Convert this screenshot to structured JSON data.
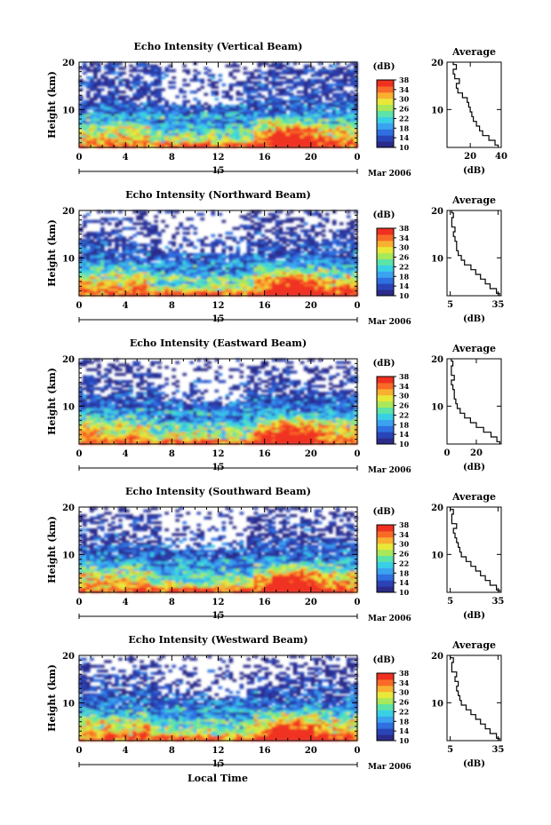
{
  "figure": {
    "xlabel_bottom": "Local Time",
    "date_label": "Mar 2006",
    "date_tick": "15",
    "colorbar_unit": "(dB)",
    "colorbar_ticks": [
      "10",
      "14",
      "18",
      "22",
      "26",
      "30",
      "34",
      "38"
    ],
    "colormap": [
      "#2b2c8a",
      "#2a44b8",
      "#2f6fe0",
      "#3aa3f0",
      "#39d0e6",
      "#5be3a8",
      "#a8e85a",
      "#e8e83a",
      "#f8b030",
      "#f86a28",
      "#f03020"
    ],
    "background_color": "#ffffff",
    "profile_title": "Average",
    "profile_xlabel": "(dB)"
  },
  "chart_data": [
    {
      "type": "heatmap",
      "title": "Echo Intensity (Vertical Beam)",
      "ylabel": "Height (km)",
      "xlabel": "",
      "x_ticks": [
        "0",
        "4",
        "8",
        "12",
        "16",
        "20",
        "0"
      ],
      "y_ticks": [
        "10",
        "20"
      ],
      "xlim": [
        0,
        24
      ],
      "ylim": [
        2,
        20
      ],
      "colorbar_range": [
        10,
        38
      ],
      "profile": {
        "title": "Average",
        "xlabel": "(dB)",
        "x_ticks": [
          "20",
          "40"
        ],
        "x_tick_values": [
          20,
          40
        ],
        "xlim": [
          5,
          40
        ],
        "y_ticks": [
          "10",
          "20"
        ],
        "ylim": [
          2,
          20
        ],
        "points": [
          [
            38,
            2
          ],
          [
            36,
            3
          ],
          [
            32,
            4
          ],
          [
            28,
            5
          ],
          [
            26,
            6
          ],
          [
            24,
            7
          ],
          [
            22,
            8
          ],
          [
            21,
            9
          ],
          [
            20,
            10
          ],
          [
            19,
            11
          ],
          [
            18,
            12
          ],
          [
            15,
            13
          ],
          [
            12,
            14
          ],
          [
            11,
            15
          ],
          [
            13,
            16
          ],
          [
            10,
            17
          ],
          [
            9,
            18
          ],
          [
            11,
            19
          ],
          [
            9,
            20
          ]
        ]
      }
    },
    {
      "type": "heatmap",
      "title": "Echo Intensity (Northward Beam)",
      "ylabel": "Height (km)",
      "xlabel": "",
      "x_ticks": [
        "0",
        "4",
        "8",
        "12",
        "16",
        "20",
        "0"
      ],
      "y_ticks": [
        "10",
        "20"
      ],
      "xlim": [
        0,
        24
      ],
      "ylim": [
        2,
        20
      ],
      "colorbar_range": [
        10,
        38
      ],
      "profile": {
        "title": "Average",
        "xlabel": "(dB)",
        "x_ticks": [
          "5",
          "35"
        ],
        "x_tick_values": [
          5,
          35
        ],
        "xlim": [
          3,
          37
        ],
        "y_ticks": [
          "10",
          "20"
        ],
        "ylim": [
          2,
          20
        ],
        "points": [
          [
            36,
            2
          ],
          [
            34,
            3
          ],
          [
            30,
            4
          ],
          [
            27,
            5
          ],
          [
            24,
            6
          ],
          [
            21,
            7
          ],
          [
            18,
            8
          ],
          [
            14,
            9
          ],
          [
            12,
            10
          ],
          [
            10,
            11
          ],
          [
            9,
            12
          ],
          [
            9,
            13
          ],
          [
            8,
            14
          ],
          [
            7,
            15
          ],
          [
            8,
            16
          ],
          [
            6,
            17
          ],
          [
            6,
            18
          ],
          [
            7,
            19
          ],
          [
            6,
            20
          ]
        ]
      }
    },
    {
      "type": "heatmap",
      "title": "Echo Intensity (Eastward Beam)",
      "ylabel": "Height (km)",
      "xlabel": "",
      "x_ticks": [
        "0",
        "4",
        "8",
        "12",
        "16",
        "20",
        "0"
      ],
      "y_ticks": [
        "10",
        "20"
      ],
      "xlim": [
        0,
        24
      ],
      "ylim": [
        2,
        20
      ],
      "colorbar_range": [
        10,
        38
      ],
      "profile": {
        "title": "Average",
        "xlabel": "(dB)",
        "x_ticks": [
          "0",
          "20"
        ],
        "x_tick_values": [
          0,
          20
        ],
        "xlim": [
          0,
          37
        ],
        "y_ticks": [
          "10",
          "20"
        ],
        "ylim": [
          2,
          20
        ],
        "points": [
          [
            36,
            2
          ],
          [
            34,
            3
          ],
          [
            30,
            4
          ],
          [
            25,
            5
          ],
          [
            20,
            6
          ],
          [
            16,
            7
          ],
          [
            12,
            8
          ],
          [
            9,
            9
          ],
          [
            7,
            10
          ],
          [
            6,
            11
          ],
          [
            5,
            12
          ],
          [
            5,
            13
          ],
          [
            4,
            14
          ],
          [
            3,
            15
          ],
          [
            5,
            16
          ],
          [
            3,
            17
          ],
          [
            3,
            18
          ],
          [
            4,
            19
          ],
          [
            3,
            20
          ]
        ]
      }
    },
    {
      "type": "heatmap",
      "title": "Echo Intensity (Southward Beam)",
      "ylabel": "Height (km)",
      "xlabel": "",
      "x_ticks": [
        "0",
        "4",
        "8",
        "12",
        "16",
        "20",
        "0"
      ],
      "y_ticks": [
        "10",
        "20"
      ],
      "xlim": [
        0,
        24
      ],
      "ylim": [
        2,
        20
      ],
      "colorbar_range": [
        10,
        38
      ],
      "profile": {
        "title": "Average",
        "xlabel": "(dB)",
        "x_ticks": [
          "5",
          "35"
        ],
        "x_tick_values": [
          5,
          35
        ],
        "xlim": [
          3,
          37
        ],
        "y_ticks": [
          "10",
          "20"
        ],
        "ylim": [
          2,
          20
        ],
        "points": [
          [
            36,
            2
          ],
          [
            34,
            3
          ],
          [
            30,
            4
          ],
          [
            27,
            5
          ],
          [
            24,
            6
          ],
          [
            21,
            7
          ],
          [
            18,
            8
          ],
          [
            15,
            9
          ],
          [
            12,
            10
          ],
          [
            11,
            11
          ],
          [
            10,
            12
          ],
          [
            9,
            13
          ],
          [
            8,
            14
          ],
          [
            7,
            15
          ],
          [
            9,
            16
          ],
          [
            6,
            17
          ],
          [
            6,
            18
          ],
          [
            7,
            19
          ],
          [
            5,
            20
          ]
        ]
      }
    },
    {
      "type": "heatmap",
      "title": "Echo Intensity (Westward Beam)",
      "ylabel": "Height (km)",
      "xlabel": "Local Time",
      "x_ticks": [
        "0",
        "4",
        "8",
        "12",
        "16",
        "20",
        "0"
      ],
      "y_ticks": [
        "10",
        "20"
      ],
      "xlim": [
        0,
        24
      ],
      "ylim": [
        2,
        20
      ],
      "colorbar_range": [
        10,
        38
      ],
      "profile": {
        "title": "Average",
        "xlabel": "(dB)",
        "x_ticks": [
          "5",
          "35"
        ],
        "x_tick_values": [
          5,
          35
        ],
        "xlim": [
          3,
          37
        ],
        "y_ticks": [
          "10",
          "20"
        ],
        "ylim": [
          2,
          20
        ],
        "points": [
          [
            36,
            2
          ],
          [
            34,
            3
          ],
          [
            30,
            4
          ],
          [
            27,
            5
          ],
          [
            24,
            6
          ],
          [
            21,
            7
          ],
          [
            18,
            8
          ],
          [
            15,
            9
          ],
          [
            12,
            10
          ],
          [
            11,
            11
          ],
          [
            10,
            12
          ],
          [
            9,
            13
          ],
          [
            10,
            14
          ],
          [
            8,
            15
          ],
          [
            9,
            16
          ],
          [
            6,
            17
          ],
          [
            6,
            18
          ],
          [
            7,
            19
          ],
          [
            5,
            20
          ]
        ]
      }
    }
  ]
}
